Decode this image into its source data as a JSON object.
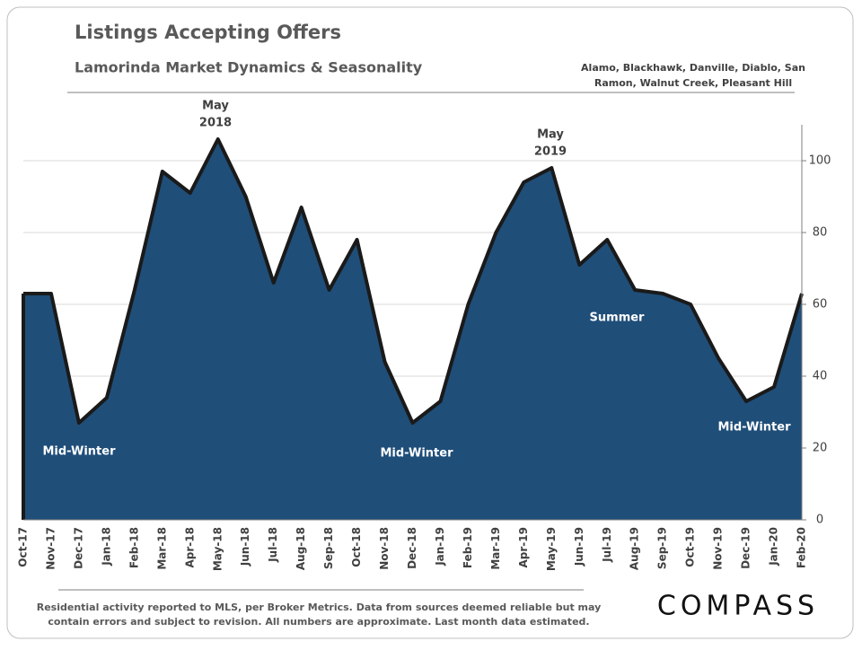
{
  "title": "Listings Accepting Offers",
  "subtitle": "Lamorinda Market Dynamics & Seasonality",
  "region_note": [
    "Alamo, Blackhawk, Danville, Diablo, San",
    "Ramon, Walnut Creek, Pleasant Hill"
  ],
  "footnote": [
    "Residential activity reported to MLS, per Broker Metrics. Data from sources deemed reliable but may",
    "contain errors and subject to revision. All numbers are approximate. Last month data estimated."
  ],
  "logo": "COMPASS",
  "chart_data": {
    "type": "area",
    "categories": [
      "Oct-17",
      "Nov-17",
      "Dec-17",
      "Jan-18",
      "Feb-18",
      "Mar-18",
      "Apr-18",
      "May-18",
      "Jun-18",
      "Jul-18",
      "Aug-18",
      "Sep-18",
      "Oct-18",
      "Nov-18",
      "Dec-18",
      "Jan-19",
      "Feb-19",
      "Mar-19",
      "Apr-19",
      "May-19",
      "Jun-19",
      "Jul-19",
      "Aug-19",
      "Sep-19",
      "Oct-19",
      "Nov-19",
      "Dec-19",
      "Jan-20",
      "Feb-20"
    ],
    "series": [
      {
        "color": "#1f4e79",
        "values": [
          63,
          63,
          27,
          34,
          64,
          97,
          91,
          106,
          90,
          66,
          87,
          64,
          78,
          44,
          27,
          33,
          60,
          80,
          94,
          98,
          71,
          78,
          64,
          63,
          60,
          45,
          33,
          37,
          63
        ]
      }
    ],
    "ylim": [
      0,
      110
    ],
    "yticks": [
      0,
      20,
      40,
      60,
      80,
      100
    ],
    "grid": true,
    "y_axis_side": "right",
    "annotations": [
      [
        "May",
        "2018"
      ],
      [
        "May",
        "2019"
      ],
      [
        "Mid-Winter"
      ],
      [
        "Mid-Winter"
      ],
      [
        "Mid-Winter"
      ],
      [
        "Summer"
      ]
    ]
  }
}
